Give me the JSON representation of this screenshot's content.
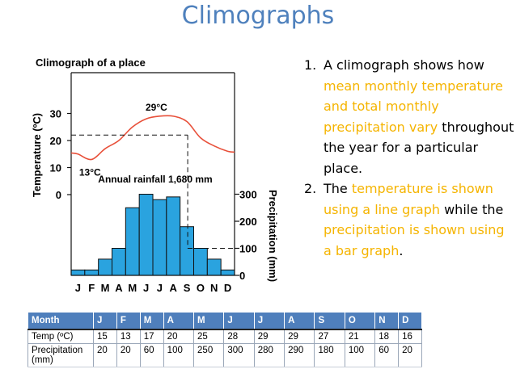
{
  "slide": {
    "title": "Climographs"
  },
  "chart_data": {
    "type": "line+bar",
    "title": "Climograph of a place",
    "categories": [
      "J",
      "F",
      "M",
      "A",
      "M",
      "J",
      "J",
      "A",
      "S",
      "O",
      "N",
      "D"
    ],
    "series": [
      {
        "name": "Temperature",
        "type": "line",
        "values": [
          15,
          13,
          17,
          20,
          25,
          28,
          29,
          29,
          27,
          21,
          18,
          16
        ]
      },
      {
        "name": "Precipitation",
        "type": "bar",
        "values": [
          20,
          20,
          60,
          100,
          250,
          300,
          280,
          290,
          180,
          100,
          60,
          20
        ]
      }
    ],
    "ylabel_left": "Temperature (ºC)",
    "ylabel_right": "Precipitation (mm)",
    "ylim_left": [
      0,
      30
    ],
    "ylim_right": [
      0,
      300
    ],
    "yticks_left": [
      "0",
      "10",
      "20",
      "30"
    ],
    "yticks_right": [
      "0",
      "100",
      "200",
      "300"
    ],
    "annotations": {
      "max_temp": "29°C",
      "min_temp": "13°C",
      "rainfall": "Annual rainfall 1,680 mm"
    },
    "colors": {
      "line": "#e8503a",
      "bar": "#2aa3df",
      "bar_edge": "#111111"
    }
  },
  "notes": [
    {
      "num": "1.",
      "parts": [
        {
          "text": "A climograph shows how ",
          "hl": false
        },
        {
          "text": "mean monthly temperature and total monthly precipitation vary",
          "hl": true
        },
        {
          "text": " throughout the year for a particular place.",
          "hl": false
        }
      ]
    },
    {
      "num": "2.",
      "parts": [
        {
          "text": "The ",
          "hl": false
        },
        {
          "text": "temperature is shown using a line graph",
          "hl": true
        },
        {
          "text": " while the ",
          "hl": false
        },
        {
          "text": "precipitation is shown using a bar graph",
          "hl": true
        },
        {
          "text": ".",
          "hl": false
        }
      ]
    }
  ],
  "table": {
    "headers": [
      "Month",
      "J",
      "F",
      "M",
      "A",
      "M",
      "J",
      "J",
      "A",
      "S",
      "O",
      "N",
      "D"
    ],
    "rows": [
      [
        "Temp (ºC)",
        "15",
        "13",
        "17",
        "20",
        "25",
        "28",
        "29",
        "29",
        "27",
        "21",
        "18",
        "16"
      ],
      [
        "Precipitation\n(mm)",
        "20",
        "20",
        "60",
        "100",
        "250",
        "300",
        "280",
        "290",
        "180",
        "100",
        "60",
        "20"
      ]
    ]
  }
}
